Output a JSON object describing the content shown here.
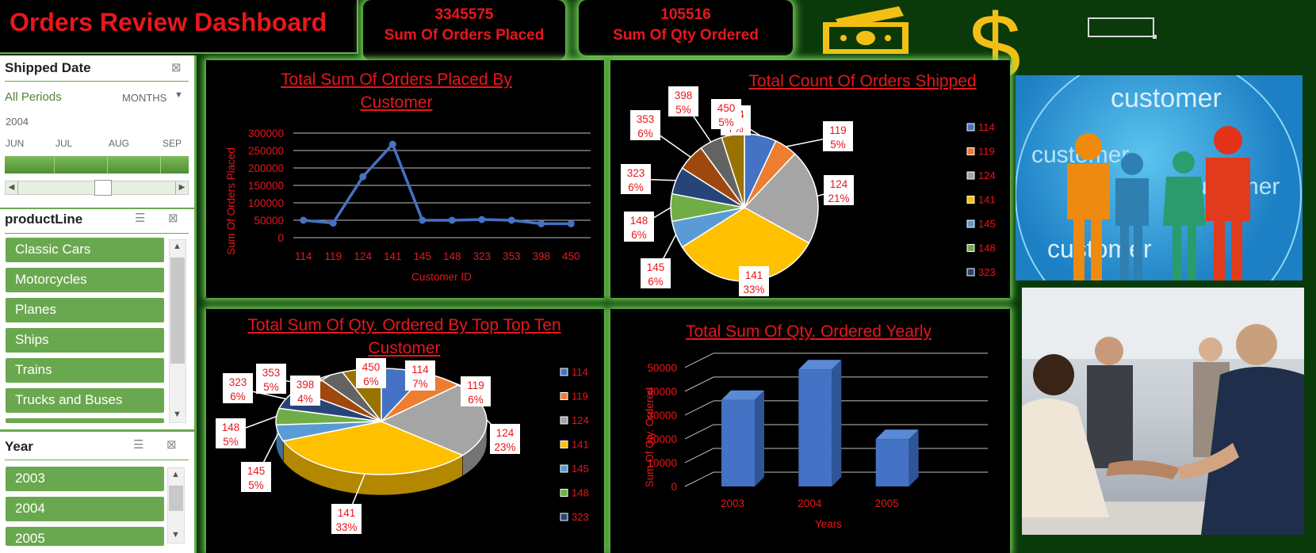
{
  "header": {
    "title": "Orders Review Dashboard"
  },
  "kpis": [
    {
      "value": "3345575",
      "label": "Sum Of Orders Placed"
    },
    {
      "value": "105516",
      "label": "Sum Of Qty Ordered"
    }
  ],
  "icons": {
    "money": "money-bill-icon",
    "dollar": "dollar-sign-icon"
  },
  "slicers": {
    "shipped_date": {
      "title": "Shipped Date",
      "period_label": "All Periods",
      "unit": "MONTHS",
      "year": "2004",
      "months": [
        "JUN",
        "JUL",
        "AUG",
        "SEP"
      ]
    },
    "product_line": {
      "title": "productLine",
      "items": [
        "Classic Cars",
        "Motorcycles",
        "Planes",
        "Ships",
        "Trains",
        "Trucks and Buses"
      ]
    },
    "year": {
      "title": "Year",
      "items": [
        "2003",
        "2004",
        "2005"
      ]
    }
  },
  "images": {
    "customer_globe_word": "customer"
  },
  "chart_data": [
    {
      "type": "line",
      "title": "Total Sum Of Orders Placed By Customer",
      "xlabel": "Customer ID",
      "ylabel": "Sum Of Orders Placed",
      "categories": [
        "114",
        "119",
        "124",
        "141",
        "145",
        "148",
        "323",
        "353",
        "398",
        "450"
      ],
      "values": [
        50000,
        42000,
        175000,
        268000,
        50000,
        50000,
        52000,
        50000,
        40000,
        40000
      ],
      "ylim": [
        0,
        300000
      ],
      "yticks": [
        "0",
        "50000",
        "100000",
        "150000",
        "200000",
        "250000",
        "300000"
      ],
      "color": "#4472c4"
    },
    {
      "type": "pie",
      "title": "Total Count Of Orders Shipped",
      "slices": [
        {
          "name": "114",
          "value": 7,
          "label": "114\n7%",
          "color": "#4472c4"
        },
        {
          "name": "119",
          "value": 5,
          "label": "119\n5%",
          "color": "#ed7d31"
        },
        {
          "name": "124",
          "value": 21,
          "label": "124\n21%",
          "color": "#a5a5a5"
        },
        {
          "name": "141",
          "value": 33,
          "label": "141\n33%",
          "color": "#ffc000"
        },
        {
          "name": "145",
          "value": 6,
          "label": "145\n6%",
          "color": "#5b9bd5"
        },
        {
          "name": "148",
          "value": 6,
          "label": "148\n6%",
          "color": "#70ad47"
        },
        {
          "name": "323",
          "value": 6,
          "label": "323\n6%",
          "color": "#264478"
        },
        {
          "name": "353",
          "value": 6,
          "label": "353\n6%",
          "color": "#9e480e"
        },
        {
          "name": "398",
          "value": 5,
          "label": "398\n5%",
          "color": "#636363"
        },
        {
          "name": "450",
          "value": 5,
          "label": "450\n5%",
          "color": "#997300"
        }
      ],
      "legend": [
        "114",
        "119",
        "124",
        "141",
        "145",
        "148",
        "323"
      ]
    },
    {
      "type": "pie",
      "title": "Total Sum Of Qty. Ordered By  Top Top Ten Customer",
      "slices": [
        {
          "name": "114",
          "value": 7,
          "label": "114\n7%",
          "color": "#4472c4"
        },
        {
          "name": "119",
          "value": 6,
          "label": "119\n6%",
          "color": "#ed7d31"
        },
        {
          "name": "124",
          "value": 23,
          "label": "124\n23%",
          "color": "#a5a5a5"
        },
        {
          "name": "141",
          "value": 33,
          "label": "141\n33%",
          "color": "#ffc000"
        },
        {
          "name": "145",
          "value": 5,
          "label": "145\n5%",
          "color": "#5b9bd5"
        },
        {
          "name": "148",
          "value": 5,
          "label": "148\n5%",
          "color": "#70ad47"
        },
        {
          "name": "323",
          "value": 6,
          "label": "323\n6%",
          "color": "#264478"
        },
        {
          "name": "353",
          "value": 5,
          "label": "353\n5%",
          "color": "#9e480e"
        },
        {
          "name": "398",
          "value": 4,
          "label": "398\n4%",
          "color": "#636363"
        },
        {
          "name": "450",
          "value": 6,
          "label": "450\n6%",
          "color": "#997300"
        }
      ],
      "legend": [
        "114",
        "119",
        "124",
        "141",
        "145",
        "148",
        "323"
      ]
    },
    {
      "type": "bar",
      "title": "Total Sum Of Qty. Ordered Yearly",
      "xlabel": "Years",
      "ylabel": "Sum Of Qty. Ordered",
      "categories": [
        "2003",
        "2004",
        "2005"
      ],
      "values": [
        36400,
        49200,
        19900
      ],
      "ylim": [
        0,
        60000
      ],
      "yticks": [
        "0",
        "10000",
        "20000",
        "30000",
        "40000",
        "50000"
      ],
      "color": "#4472c4"
    }
  ]
}
